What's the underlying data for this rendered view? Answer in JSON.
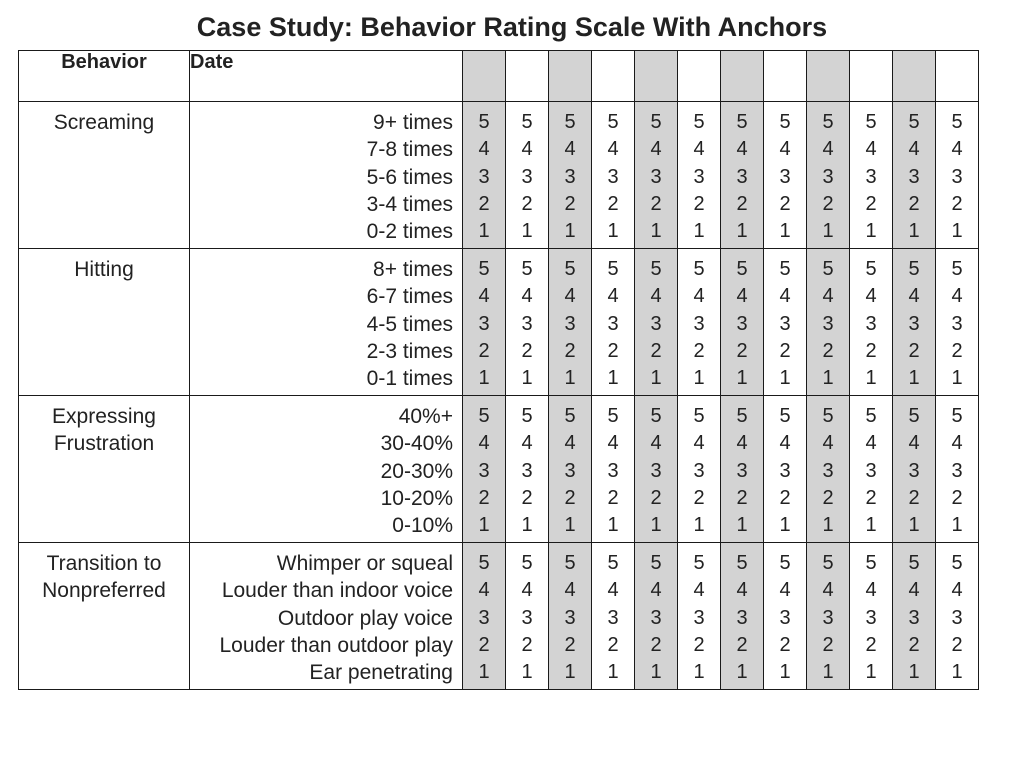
{
  "title": "Case Study: Behavior Rating Scale With Anchors",
  "columns": {
    "behavior_header": "Behavior",
    "date_header": "Date",
    "date_cells": [
      "",
      "",
      "",
      "",
      "",
      "",
      "",
      "",
      "",
      "",
      "",
      ""
    ],
    "shaded_color": "#d3d3d3"
  },
  "scale": [
    "5",
    "4",
    "3",
    "2",
    "1"
  ],
  "behaviors": [
    {
      "name_lines": [
        "Screaming"
      ],
      "anchors": [
        "9+ times",
        "7-8 times",
        "5-6 times",
        "3-4 times",
        "0-2 times"
      ]
    },
    {
      "name_lines": [
        "Hitting"
      ],
      "anchors": [
        "8+ times",
        "6-7 times",
        "4-5 times",
        "2-3 times",
        "0-1 times"
      ]
    },
    {
      "name_lines": [
        "Expressing",
        "Frustration"
      ],
      "anchors": [
        "40%+",
        "30-40%",
        "20-30%",
        "10-20%",
        "0-10%"
      ]
    },
    {
      "name_lines": [
        "Transition to",
        "Nonpreferred"
      ],
      "anchors": [
        "Whimper or squeal",
        "Louder than indoor voice",
        "Outdoor play voice",
        "Louder than outdoor play",
        "Ear penetrating"
      ]
    }
  ]
}
